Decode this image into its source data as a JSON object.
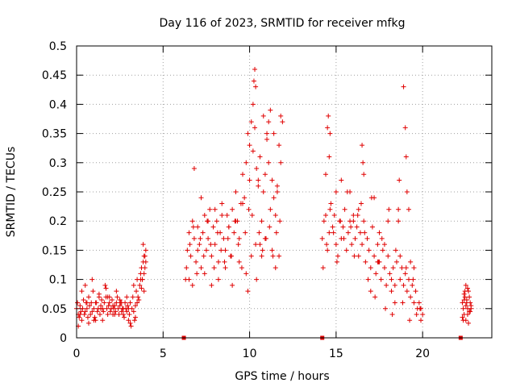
{
  "chart_data": {
    "type": "scatter",
    "title": "Day 116 of 2023, SRMTID for receiver mfkg",
    "xlabel": "GPS time / hours",
    "ylabel": "SRMTID / TECUs",
    "xlim": [
      0,
      24
    ],
    "ylim": [
      0,
      0.5
    ],
    "xticks": [
      0,
      5,
      10,
      15,
      20
    ],
    "xtick_labels": [
      "0",
      "5",
      "10",
      "15",
      "20"
    ],
    "yticks": [
      0,
      0.05,
      0.1,
      0.15,
      0.2,
      0.25,
      0.3,
      0.35,
      0.4,
      0.45,
      0.5
    ],
    "ytick_labels": [
      "0",
      "0.05",
      "0.1",
      "0.15",
      "0.2",
      "0.25",
      "0.3",
      "0.35",
      "0.4",
      "0.45",
      "0.5"
    ],
    "grid": true,
    "marker": "+",
    "color": "#e00000",
    "gap_markers_x": [
      6.2,
      14.2,
      22.2
    ],
    "series": [
      {
        "name": "SRMTID",
        "x": [
          0.0,
          0.05,
          0.1,
          0.15,
          0.2,
          0.25,
          0.3,
          0.35,
          0.4,
          0.45,
          0.5,
          0.55,
          0.6,
          0.65,
          0.7,
          0.75,
          0.8,
          0.85,
          0.9,
          0.95,
          1.0,
          1.05,
          1.1,
          1.15,
          1.2,
          1.25,
          1.3,
          1.35,
          1.4,
          1.45,
          1.5,
          1.55,
          1.6,
          1.65,
          1.7,
          1.75,
          1.8,
          1.85,
          1.9,
          1.95,
          2.0,
          2.05,
          2.1,
          2.15,
          2.2,
          2.25,
          2.3,
          2.35,
          2.4,
          2.45,
          2.5,
          2.55,
          2.6,
          2.65,
          2.7,
          2.75,
          2.8,
          2.85,
          2.9,
          2.95,
          3.0,
          3.05,
          3.1,
          3.15,
          3.2,
          3.25,
          3.3,
          3.35,
          3.4,
          3.45,
          3.5,
          3.55,
          3.6,
          3.65,
          3.7,
          3.75,
          3.8,
          3.85,
          3.9,
          3.95,
          4.0,
          0.1,
          0.3,
          0.5,
          0.7,
          0.9,
          1.1,
          1.3,
          1.5,
          1.7,
          1.9,
          2.1,
          2.3,
          2.5,
          2.7,
          2.9,
          3.1,
          3.3,
          3.5,
          3.7,
          3.9,
          0.2,
          0.6,
          1.0,
          1.4,
          1.8,
          2.2,
          2.6,
          3.0,
          3.4,
          3.8,
          3.85,
          3.95,
          4.0,
          3.9,
          3.75,
          6.3,
          6.4,
          6.5,
          6.6,
          6.7,
          6.8,
          6.9,
          7.0,
          7.1,
          7.2,
          7.3,
          7.4,
          7.5,
          7.6,
          7.7,
          7.8,
          7.9,
          8.0,
          8.1,
          8.2,
          8.3,
          8.4,
          8.5,
          8.6,
          8.7,
          8.8,
          8.9,
          9.0,
          9.1,
          9.2,
          9.3,
          9.4,
          9.5,
          9.6,
          9.7,
          9.8,
          9.9,
          10.0,
          10.1,
          10.2,
          10.3,
          10.4,
          10.5,
          10.6,
          10.7,
          10.8,
          10.9,
          11.0,
          11.1,
          11.2,
          11.3,
          11.4,
          11.5,
          11.6,
          11.7,
          11.8,
          6.35,
          6.55,
          6.75,
          6.95,
          7.15,
          7.35,
          7.55,
          7.75,
          7.95,
          8.15,
          8.35,
          8.55,
          8.75,
          8.95,
          9.15,
          9.35,
          9.55,
          9.75,
          9.95,
          10.15,
          10.35,
          10.55,
          10.75,
          10.95,
          11.15,
          11.35,
          11.55,
          11.75,
          6.7,
          6.8,
          7.2,
          7.6,
          8.0,
          8.4,
          8.8,
          9.2,
          9.6,
          10.0,
          10.2,
          10.25,
          10.3,
          10.35,
          10.5,
          10.8,
          11.0,
          11.1,
          11.2,
          11.4,
          11.6,
          11.8,
          11.9,
          9.9,
          10.1,
          10.6,
          10.9,
          11.3,
          11.7,
          6.5,
          7.0,
          7.4,
          7.8,
          8.2,
          8.6,
          9.0,
          9.4,
          9.8,
          10.4,
          10.7,
          11.5,
          14.2,
          14.3,
          14.4,
          14.5,
          14.6,
          14.7,
          14.8,
          14.9,
          15.0,
          15.1,
          15.2,
          15.3,
          15.4,
          15.5,
          15.6,
          15.7,
          15.8,
          15.9,
          16.0,
          16.1,
          16.2,
          16.3,
          16.4,
          16.5,
          16.6,
          16.7,
          16.8,
          16.9,
          17.0,
          17.1,
          17.2,
          17.3,
          17.4,
          17.5,
          17.6,
          17.7,
          17.8,
          17.9,
          18.0,
          18.1,
          18.2,
          18.3,
          18.4,
          18.5,
          18.6,
          18.7,
          18.8,
          18.9,
          19.0,
          19.1,
          19.2,
          19.3,
          19.4,
          19.5,
          19.6,
          19.7,
          19.8,
          19.9,
          20.0,
          14.25,
          14.45,
          14.65,
          14.85,
          15.05,
          15.25,
          15.45,
          15.65,
          15.85,
          16.05,
          16.25,
          16.45,
          16.65,
          16.85,
          17.05,
          17.25,
          17.45,
          17.65,
          17.85,
          18.05,
          18.25,
          18.45,
          18.65,
          18.85,
          19.05,
          19.25,
          19.45,
          19.65,
          19.85,
          14.5,
          14.55,
          14.6,
          14.65,
          16.5,
          16.55,
          16.6,
          18.6,
          18.9,
          19.0,
          19.05,
          19.1,
          19.2,
          17.0,
          17.5,
          18.0,
          18.4,
          15.3,
          15.8,
          16.3,
          17.2,
          17.8,
          18.7,
          19.5,
          19.9,
          14.4,
          15.0,
          16.0,
          17.4,
          18.2,
          19.3,
          22.3,
          22.35,
          22.4,
          22.45,
          22.5,
          22.55,
          22.6,
          22.65,
          22.7,
          22.75,
          22.8,
          22.3,
          22.4,
          22.5,
          22.6,
          22.7,
          22.8,
          22.35,
          22.55,
          22.75,
          22.45,
          22.65,
          22.5,
          22.6,
          22.4
        ],
        "y": [
          0.05,
          0.06,
          0.04,
          0.035,
          0.055,
          0.045,
          0.03,
          0.05,
          0.065,
          0.04,
          0.045,
          0.06,
          0.05,
          0.035,
          0.07,
          0.055,
          0.04,
          0.06,
          0.045,
          0.08,
          0.05,
          0.035,
          0.03,
          0.06,
          0.045,
          0.05,
          0.07,
          0.04,
          0.055,
          0.065,
          0.05,
          0.045,
          0.06,
          0.09,
          0.07,
          0.05,
          0.04,
          0.055,
          0.06,
          0.045,
          0.05,
          0.065,
          0.04,
          0.05,
          0.055,
          0.045,
          0.06,
          0.07,
          0.05,
          0.04,
          0.055,
          0.06,
          0.045,
          0.05,
          0.04,
          0.035,
          0.06,
          0.05,
          0.045,
          0.055,
          0.03,
          0.04,
          0.06,
          0.02,
          0.05,
          0.07,
          0.045,
          0.03,
          0.055,
          0.08,
          0.1,
          0.07,
          0.065,
          0.09,
          0.11,
          0.12,
          0.1,
          0.13,
          0.14,
          0.12,
          0.15,
          0.02,
          0.08,
          0.09,
          0.025,
          0.1,
          0.06,
          0.075,
          0.03,
          0.085,
          0.07,
          0.055,
          0.08,
          0.065,
          0.05,
          0.07,
          0.025,
          0.09,
          0.06,
          0.1,
          0.08,
          0.04,
          0.06,
          0.03,
          0.05,
          0.07,
          0.04,
          0.06,
          0.05,
          0.035,
          0.1,
          0.16,
          0.14,
          0.13,
          0.11,
          0.085,
          0.1,
          0.15,
          0.18,
          0.14,
          0.2,
          0.17,
          0.13,
          0.19,
          0.16,
          0.12,
          0.18,
          0.21,
          0.15,
          0.17,
          0.22,
          0.14,
          0.19,
          0.16,
          0.2,
          0.13,
          0.18,
          0.23,
          0.17,
          0.15,
          0.21,
          0.19,
          0.14,
          0.22,
          0.18,
          0.25,
          0.2,
          0.17,
          0.23,
          0.28,
          0.24,
          0.3,
          0.35,
          0.33,
          0.37,
          0.32,
          0.36,
          0.29,
          0.27,
          0.31,
          0.2,
          0.25,
          0.28,
          0.34,
          0.3,
          0.22,
          0.27,
          0.24,
          0.21,
          0.26,
          0.33,
          0.3,
          0.12,
          0.16,
          0.19,
          0.11,
          0.17,
          0.14,
          0.2,
          0.16,
          0.12,
          0.18,
          0.15,
          0.13,
          0.17,
          0.14,
          0.2,
          0.16,
          0.12,
          0.18,
          0.22,
          0.21,
          0.16,
          0.18,
          0.15,
          0.17,
          0.19,
          0.14,
          0.18,
          0.2,
          0.09,
          0.29,
          0.24,
          0.2,
          0.22,
          0.21,
          0.19,
          0.2,
          0.23,
          0.27,
          0.4,
          0.44,
          0.46,
          0.43,
          0.26,
          0.38,
          0.35,
          0.37,
          0.39,
          0.35,
          0.25,
          0.38,
          0.37,
          0.08,
          0.14,
          0.16,
          0.17,
          0.15,
          0.14,
          0.1,
          0.15,
          0.11,
          0.09,
          0.1,
          0.12,
          0.09,
          0.13,
          0.11,
          0.1,
          0.14,
          0.12,
          0.17,
          0.2,
          0.21,
          0.15,
          0.18,
          0.23,
          0.19,
          0.21,
          0.16,
          0.14,
          0.2,
          0.17,
          0.19,
          0.22,
          0.15,
          0.18,
          0.2,
          0.16,
          0.21,
          0.17,
          0.19,
          0.14,
          0.18,
          0.16,
          0.2,
          0.13,
          0.17,
          0.15,
          0.12,
          0.19,
          0.14,
          0.11,
          0.16,
          0.13,
          0.1,
          0.15,
          0.12,
          0.09,
          0.14,
          0.11,
          0.08,
          0.12,
          0.09,
          0.13,
          0.2,
          0.1,
          0.12,
          0.09,
          0.11,
          0.08,
          0.1,
          0.07,
          0.09,
          0.06,
          0.08,
          0.05,
          0.06,
          0.05,
          0.04,
          0.12,
          0.16,
          0.22,
          0.18,
          0.13,
          0.2,
          0.17,
          0.25,
          0.19,
          0.14,
          0.21,
          0.23,
          0.18,
          0.1,
          0.24,
          0.07,
          0.13,
          0.17,
          0.05,
          0.22,
          0.04,
          0.15,
          0.27,
          0.06,
          0.12,
          0.03,
          0.1,
          0.04,
          0.05,
          0.36,
          0.38,
          0.31,
          0.35,
          0.33,
          0.3,
          0.28,
          0.22,
          0.43,
          0.36,
          0.31,
          0.25,
          0.22,
          0.08,
          0.18,
          0.2,
          0.06,
          0.27,
          0.25,
          0.22,
          0.24,
          0.16,
          0.14,
          0.12,
          0.03,
          0.28,
          0.25,
          0.2,
          0.13,
          0.1,
          0.13,
          0.06,
          0.05,
          0.04,
          0.07,
          0.03,
          0.065,
          0.05,
          0.08,
          0.045,
          0.06,
          0.055,
          0.035,
          0.075,
          0.09,
          0.04,
          0.07,
          0.05,
          0.03,
          0.06,
          0.045,
          0.08,
          0.025,
          0.055,
          0.085,
          0.065
        ]
      }
    ]
  }
}
